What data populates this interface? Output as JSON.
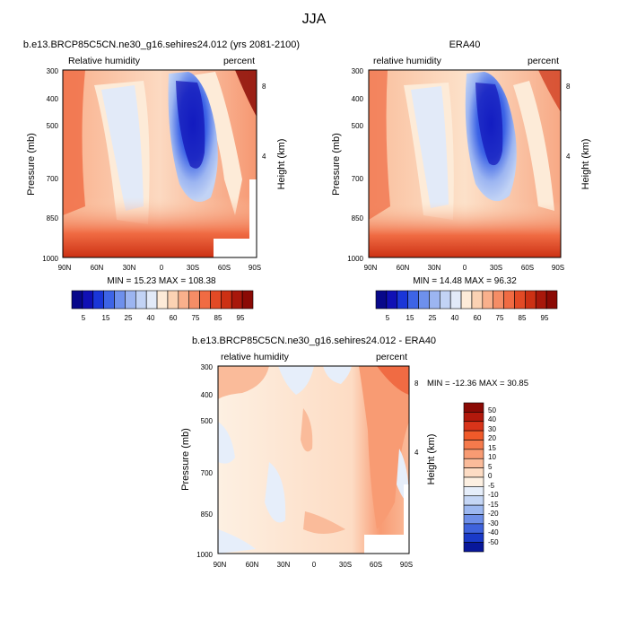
{
  "figure": {
    "title": "JJA"
  },
  "colorbar_top": {
    "labels": [
      "5",
      "15",
      "25",
      "40",
      "60",
      "75",
      "85",
      "95"
    ],
    "colors": [
      "#08088a",
      "#1010b5",
      "#1a36d8",
      "#3d64e6",
      "#6e90ec",
      "#9cb5f1",
      "#c2d3f5",
      "#e2eaf8",
      "#fdebd8",
      "#fbd2b3",
      "#f9b08c",
      "#f58d66",
      "#f06b43",
      "#e24a25",
      "#cc3114",
      "#a8180b",
      "#8b0a05"
    ]
  },
  "colorbar_diff": {
    "labels": [
      "50",
      "40",
      "30",
      "20",
      "15",
      "10",
      "5",
      "0",
      "-5",
      "-10",
      "-15",
      "-20",
      "-30",
      "-40",
      "-50"
    ],
    "colors": [
      "#8b0a05",
      "#b2190c",
      "#d8341a",
      "#f05a2a",
      "#f57a4c",
      "#f89b73",
      "#fabb9a",
      "#fddcc4",
      "#fdf0e2",
      "#e6eefa",
      "#c5d6f5",
      "#9db8f0",
      "#6e8fe8",
      "#3f63dc",
      "#1a3ac8",
      "#08179a"
    ]
  },
  "chart_data": [
    {
      "type": "heatmap",
      "title": "b.e13.BRCP85C5CN.ne30_g16.sehires24.012 (yrs 2081-2100)",
      "subtitle_left": "Relative humidity",
      "subtitle_right": "percent",
      "xlabel": "",
      "ylabel": "Pressure (mb)",
      "ylabel_right": "Height (km)",
      "x_ticks": [
        "90N",
        "60N",
        "30N",
        "0",
        "30S",
        "60S",
        "90S"
      ],
      "y_ticks": [
        "300",
        "400",
        "500",
        "700",
        "850",
        "1000"
      ],
      "y_ticks_right": [
        "8",
        "4"
      ],
      "ylim": [
        1000,
        300
      ],
      "stats": "MIN =  15.23   MAX = 108.38"
    },
    {
      "type": "heatmap",
      "title": "ERA40",
      "subtitle_left": "relative humidity",
      "subtitle_right": "percent",
      "xlabel": "",
      "ylabel": "Pressure (mb)",
      "ylabel_right": "Height (km)",
      "x_ticks": [
        "90N",
        "60N",
        "30N",
        "0",
        "30S",
        "60S",
        "90S"
      ],
      "y_ticks": [
        "300",
        "400",
        "500",
        "700",
        "850",
        "1000"
      ],
      "y_ticks_right": [
        "8",
        "4"
      ],
      "ylim": [
        1000,
        300
      ],
      "stats": "MIN =  14.48   MAX =  96.32"
    },
    {
      "type": "heatmap",
      "title": "b.e13.BRCP85C5CN.ne30_g16.sehires24.012 - ERA40",
      "subtitle_left": "relative humidity",
      "subtitle_right": "percent",
      "xlabel": "",
      "ylabel": "Pressure (mb)",
      "ylabel_right": "Height (km)",
      "x_ticks": [
        "90N",
        "60N",
        "30N",
        "0",
        "30S",
        "60S",
        "90S"
      ],
      "y_ticks": [
        "300",
        "400",
        "500",
        "700",
        "850",
        "1000"
      ],
      "y_ticks_right": [
        "8",
        "4"
      ],
      "ylim": [
        1000,
        300
      ],
      "stats": "MIN = -12.36   MAX =  30.85"
    }
  ]
}
